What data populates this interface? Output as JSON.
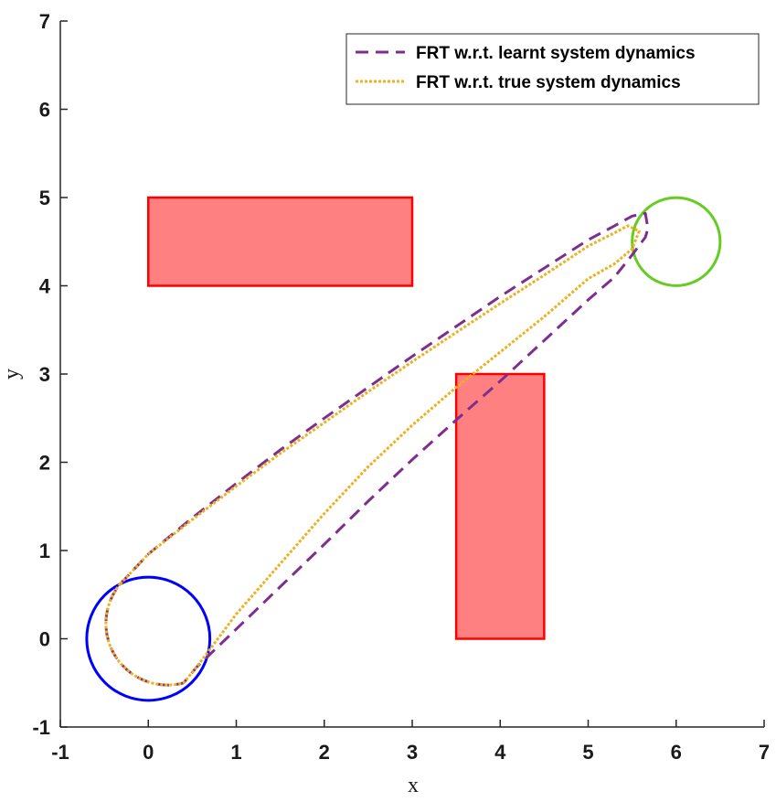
{
  "chart_data": {
    "type": "line",
    "xlabel": "x",
    "ylabel": "y",
    "xlim": [
      -1,
      7
    ],
    "ylim": [
      -1,
      7
    ],
    "xticks": [
      "-1",
      "0",
      "1",
      "2",
      "3",
      "4",
      "5",
      "6",
      "7"
    ],
    "yticks": [
      "-1",
      "0",
      "1",
      "2",
      "3",
      "4",
      "5",
      "6",
      "7"
    ],
    "grid": false,
    "legend_position": "top-right",
    "obstacles": [
      {
        "x": [
          0,
          3
        ],
        "y": [
          4,
          5
        ],
        "fill": "#ff8080",
        "stroke": "#ff0000"
      },
      {
        "x": [
          3.5,
          4.5
        ],
        "y": [
          0,
          3
        ],
        "fill": "#ff8080",
        "stroke": "#ff0000"
      }
    ],
    "start_region": {
      "center": [
        0,
        0
      ],
      "radius": 0.7,
      "color": "#0000ff"
    },
    "goal_region": {
      "center": [
        6,
        4.5
      ],
      "radius": 0.5,
      "color": "#66cc22"
    },
    "series": [
      {
        "name": "FRT w.r.t. learnt system dynamics",
        "color": "#7e2f8e",
        "style": "dashed",
        "x": [
          -0.32,
          0.0,
          0.5,
          1.0,
          1.5,
          2.0,
          2.5,
          3.0,
          3.5,
          4.0,
          4.5,
          5.0,
          5.3,
          5.5,
          5.65,
          5.68,
          5.65,
          5.5,
          5.3,
          5.0,
          4.5,
          4.0,
          3.5,
          3.0,
          2.5,
          2.0,
          1.5,
          1.0,
          0.55,
          0.4
        ],
        "y": [
          0.62,
          0.96,
          1.37,
          1.76,
          2.14,
          2.5,
          2.85,
          3.2,
          3.54,
          3.88,
          4.2,
          4.52,
          4.68,
          4.79,
          4.82,
          4.65,
          4.55,
          4.35,
          4.1,
          3.84,
          3.38,
          2.92,
          2.48,
          2.03,
          1.56,
          1.07,
          0.59,
          0.11,
          -0.32,
          -0.5
        ]
      },
      {
        "name": "FRT w.r.t. true system dynamics",
        "color": "#edb120",
        "style": "dotted",
        "x": [
          -0.32,
          0.0,
          0.5,
          1.0,
          1.5,
          2.0,
          2.5,
          3.0,
          3.5,
          4.0,
          4.5,
          5.0,
          5.3,
          5.45,
          5.58,
          5.5,
          5.3,
          5.0,
          4.5,
          4.0,
          3.5,
          3.0,
          2.5,
          2.0,
          1.5,
          1.0,
          0.55,
          0.4
        ],
        "y": [
          0.62,
          0.96,
          1.35,
          1.73,
          2.1,
          2.45,
          2.8,
          3.14,
          3.47,
          3.8,
          4.12,
          4.45,
          4.6,
          4.68,
          4.62,
          4.42,
          4.25,
          4.08,
          3.65,
          3.25,
          2.85,
          2.42,
          1.95,
          1.42,
          0.85,
          0.28,
          -0.32,
          -0.5
        ]
      }
    ]
  }
}
